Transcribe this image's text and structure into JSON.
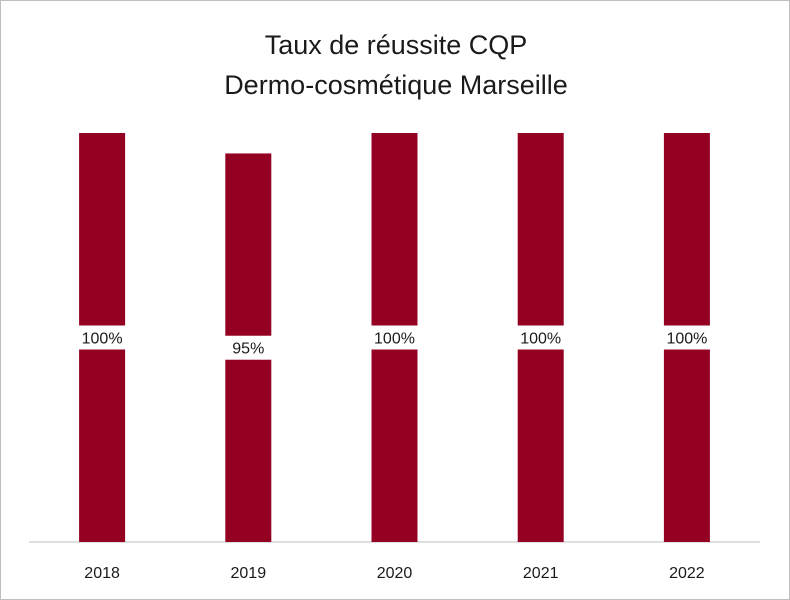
{
  "chart_data": {
    "type": "bar",
    "title_line1": "Taux de réussite CQP",
    "title_line2": "Dermo-cosmétique Marseille",
    "categories": [
      "2018",
      "2019",
      "2020",
      "2021",
      "2022"
    ],
    "values": [
      100,
      95,
      100,
      100,
      100
    ],
    "data_labels": [
      "100%",
      "95%",
      "100%",
      "100%",
      "100%"
    ],
    "ylim": [
      0,
      100
    ],
    "bar_color": "#940021",
    "grid": false,
    "legend": "none"
  }
}
